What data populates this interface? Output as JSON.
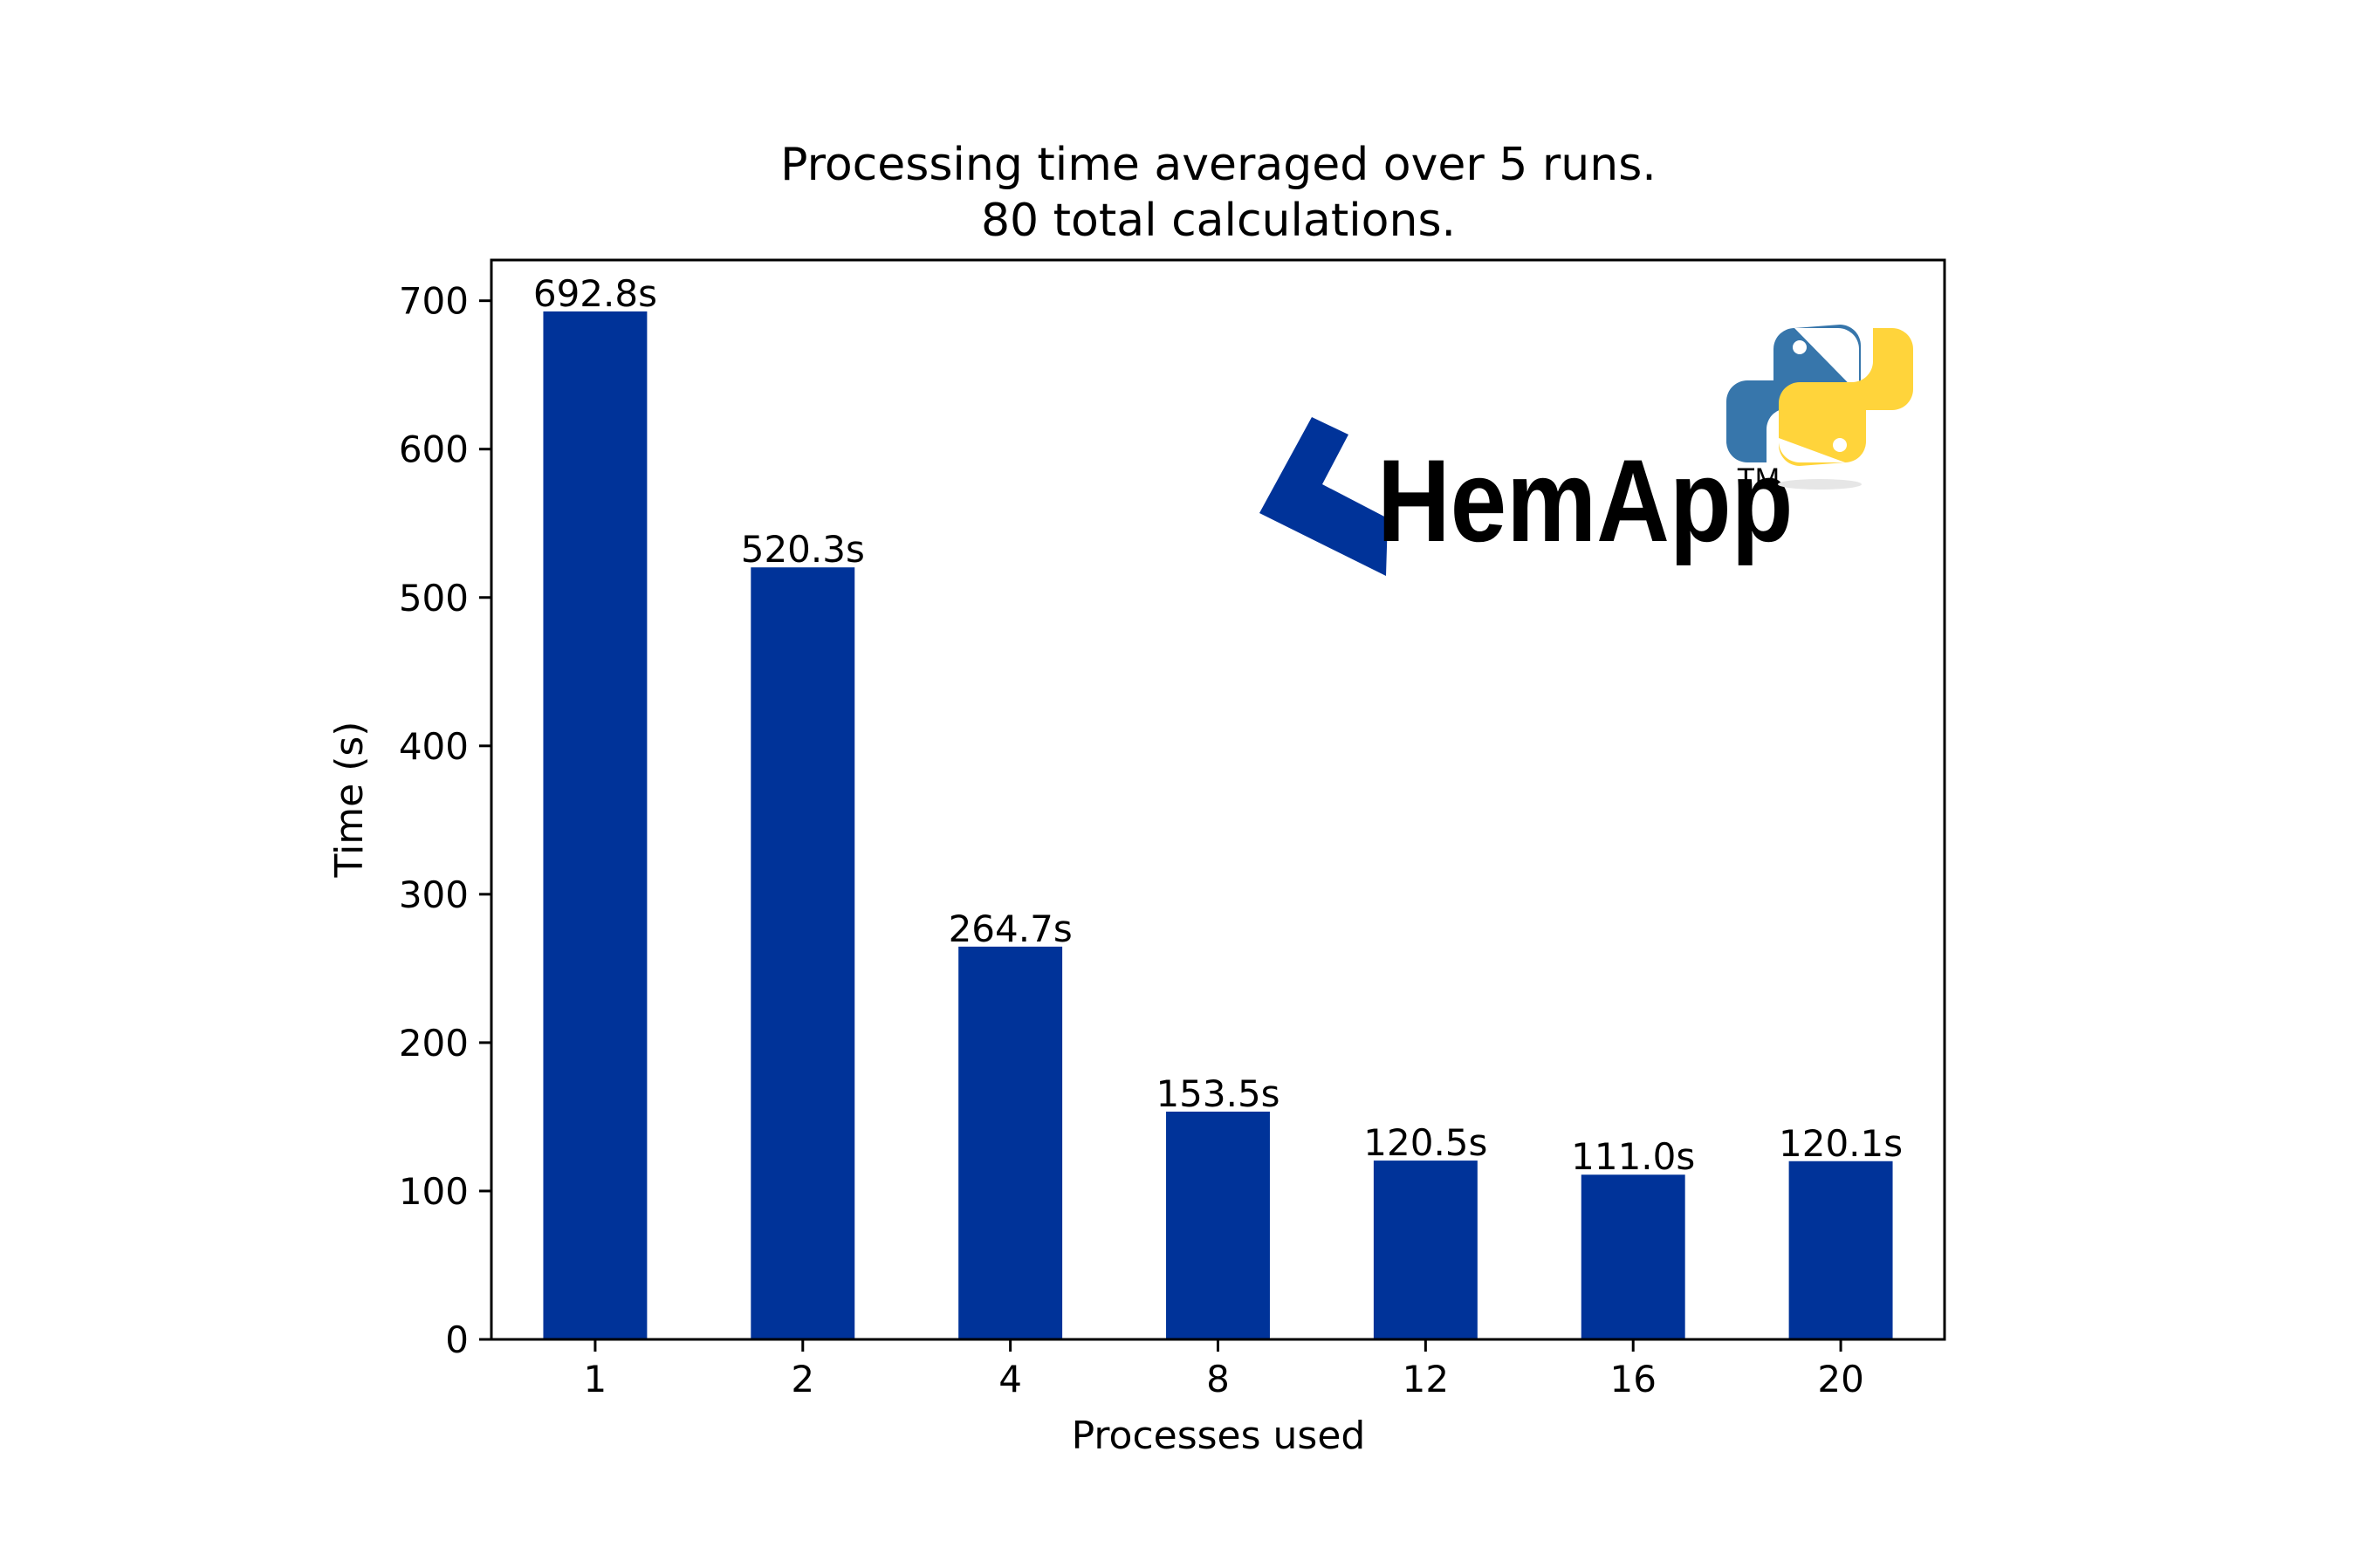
{
  "chart_data": {
    "type": "bar",
    "title_lines": [
      "Processing time averaged over 5 runs.",
      "80 total calculations."
    ],
    "xlabel": "Processes used",
    "ylabel": "Time (s)",
    "categories": [
      "1",
      "2",
      "4",
      "8",
      "12",
      "16",
      "20"
    ],
    "values": [
      692.8,
      520.3,
      264.7,
      153.5,
      120.5,
      111.0,
      120.1
    ],
    "data_labels": [
      "692.8s",
      "520.3s",
      "264.7s",
      "153.5s",
      "120.5s",
      "111.0s",
      "120.1s"
    ],
    "ylim": [
      0,
      727.44
    ],
    "yticks": [
      0,
      100,
      200,
      300,
      400,
      500,
      600,
      700
    ],
    "grid": false,
    "bar_color": "#003399"
  },
  "logo": {
    "text": "HemApp",
    "trademark": "TM",
    "brand_color": "#003399",
    "python_blue": "#3776ab",
    "python_yellow": "#ffd43b"
  }
}
